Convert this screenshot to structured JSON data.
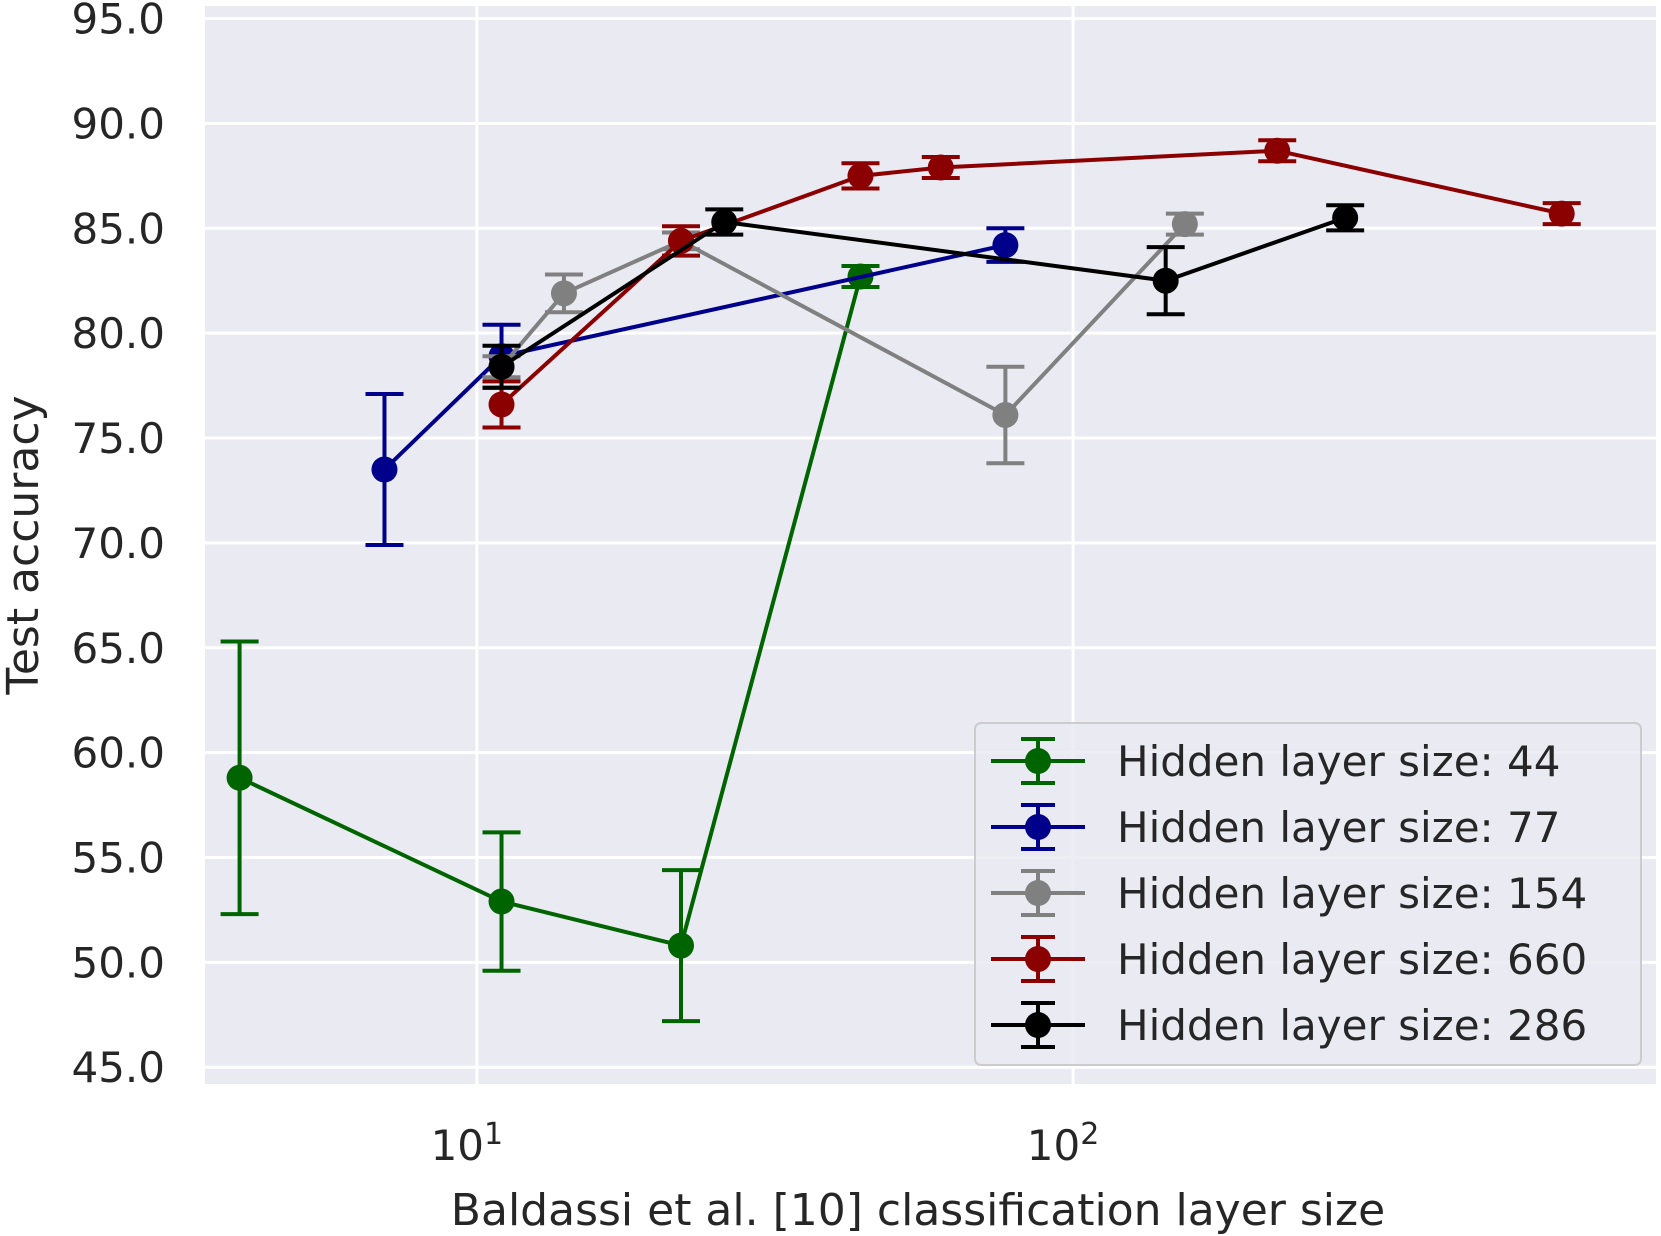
{
  "chart_data": {
    "type": "line",
    "xlabel": "Baldassi et al. [10] classification layer size",
    "ylabel": "Test accuracy",
    "xscale": "log",
    "xlim": [
      3.5,
      950
    ],
    "ylim": [
      44.2,
      95.6
    ],
    "x_ticks": [
      {
        "value": 10,
        "base": "10",
        "exponent": "1"
      },
      {
        "value": 100,
        "base": "10",
        "exponent": "2"
      }
    ],
    "y_ticks": [
      "45.0",
      "50.0",
      "55.0",
      "60.0",
      "65.0",
      "70.0",
      "75.0",
      "80.0",
      "85.0",
      "90.0",
      "95.0"
    ],
    "grid": true,
    "legend_position": "lower-right",
    "background": "#eaeaf2",
    "series": [
      {
        "name": "Hidden layer size: 44",
        "color": "#006400",
        "x": [
          4,
          11,
          22,
          44
        ],
        "y": [
          58.8,
          52.9,
          50.8,
          82.7
        ],
        "err": [
          6.5,
          3.3,
          3.6,
          0.5
        ]
      },
      {
        "name": "Hidden layer size: 77",
        "color": "#00008b",
        "x": [
          7,
          11,
          77
        ],
        "y": [
          73.5,
          78.9,
          84.2
        ],
        "err": [
          3.6,
          1.5,
          0.8
        ]
      },
      {
        "name": "Hidden layer size: 154",
        "color": "#808080",
        "x": [
          11,
          14,
          22,
          77,
          154
        ],
        "y": [
          78.4,
          81.9,
          84.4,
          76.1,
          85.2
        ],
        "err": [
          0.5,
          0.9,
          0.4,
          2.3,
          0.5
        ]
      },
      {
        "name": "Hidden layer size: 660",
        "color": "#8b0000",
        "x": [
          11,
          22,
          44,
          60,
          220,
          660
        ],
        "y": [
          76.6,
          84.4,
          87.5,
          87.9,
          88.7,
          85.7
        ],
        "err": [
          1.1,
          0.7,
          0.6,
          0.5,
          0.5,
          0.5
        ]
      },
      {
        "name": "Hidden layer size: 286",
        "color": "#000000",
        "x": [
          11,
          26,
          143,
          286
        ],
        "y": [
          78.4,
          85.3,
          82.5,
          85.5
        ],
        "err": [
          1.0,
          0.6,
          1.6,
          0.6
        ]
      }
    ]
  }
}
